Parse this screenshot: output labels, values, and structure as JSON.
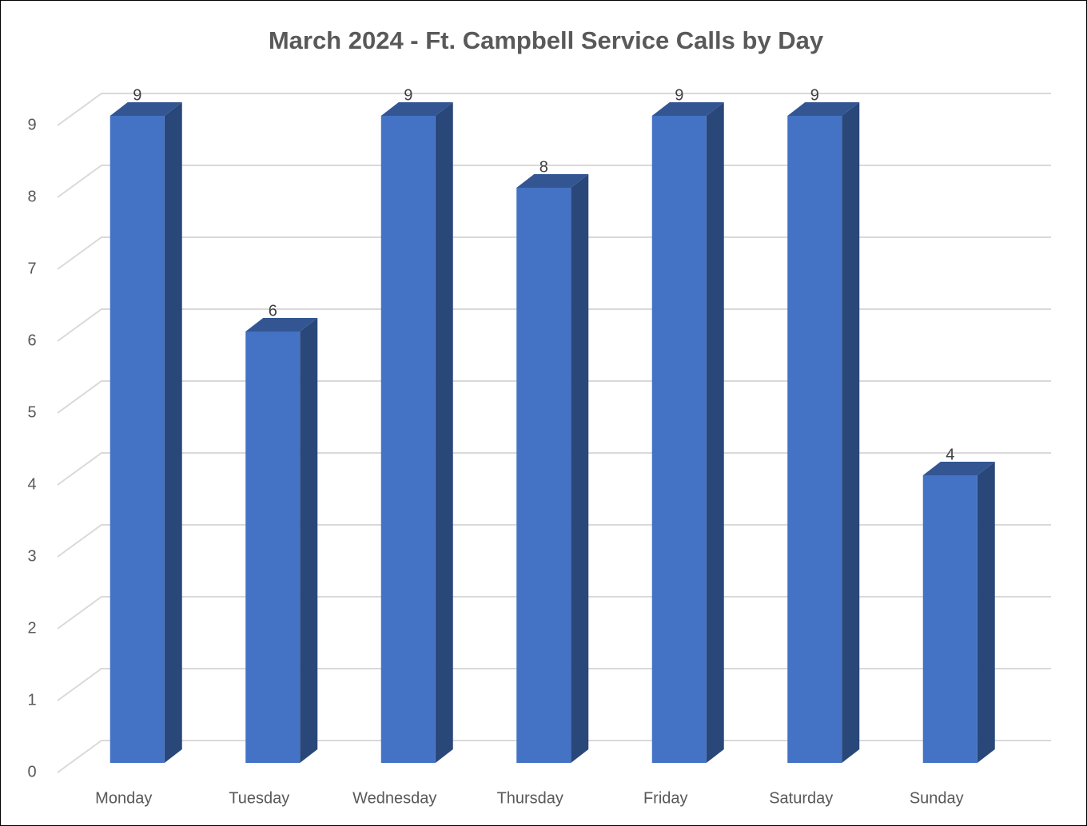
{
  "chart_data": {
    "type": "bar3d",
    "title": "March 2024 - Ft. Campbell Service Calls by Day",
    "categories": [
      "Monday",
      "Tuesday",
      "Wednesday",
      "Thursday",
      "Friday",
      "Saturday",
      "Sunday"
    ],
    "values": [
      9,
      6,
      9,
      8,
      9,
      9,
      4
    ],
    "color": "#4472c4",
    "ylim": [
      0,
      9
    ],
    "yticks": [
      0,
      1,
      2,
      3,
      4,
      5,
      6,
      7,
      8,
      9
    ],
    "grid": true,
    "data_labels": true
  }
}
